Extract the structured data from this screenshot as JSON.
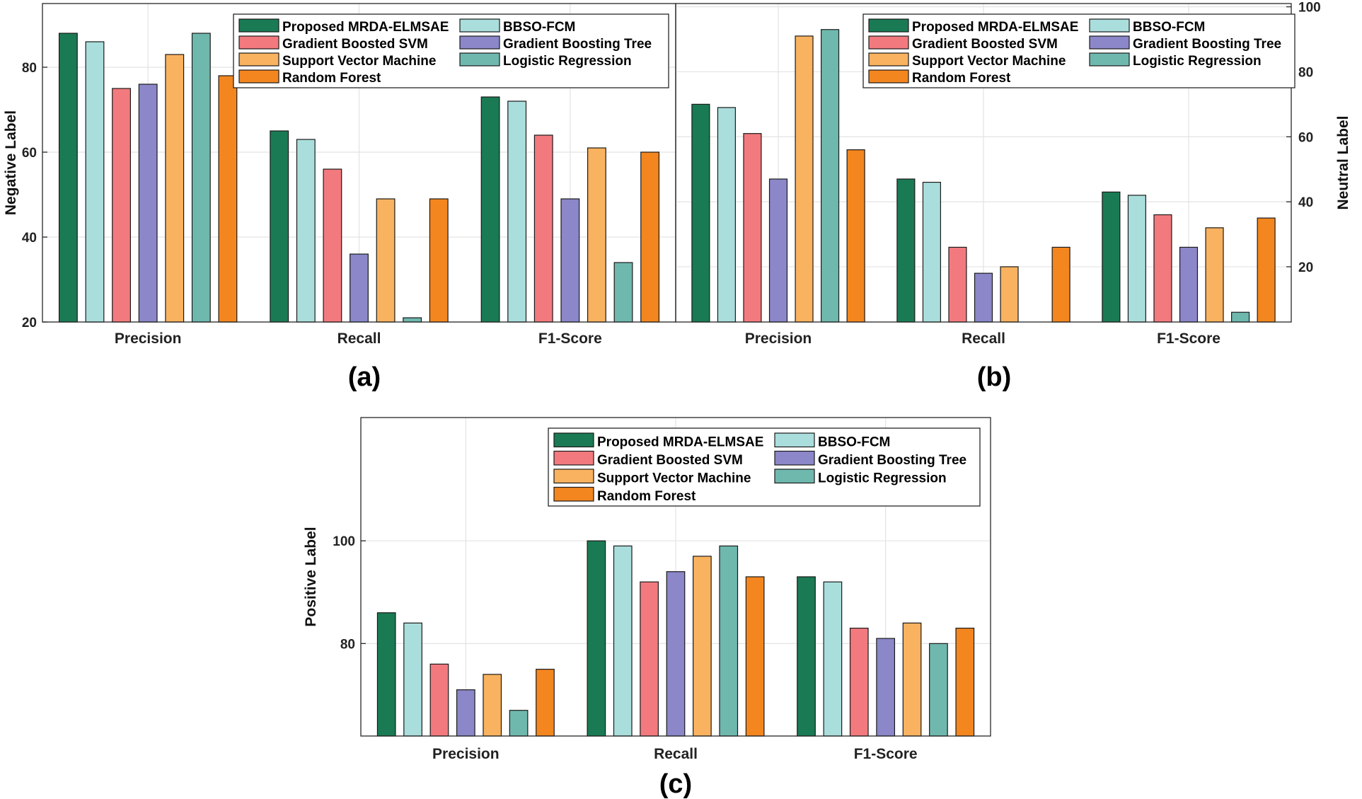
{
  "colors": {
    "Proposed MRDA-ELMSAE": "#1a7a54",
    "BBSO-FCM": "#aadedc",
    "Gradient Boosted SVM": "#f27a7e",
    "Gradient Boosting Tree": "#8b87c9",
    "Support Vector Machine": "#f9b25f",
    "Logistic Regression": "#6fb8ae",
    "Random Forest": "#f3861f"
  },
  "chart_data": [
    {
      "type": "bar",
      "panel_label": "(a)",
      "ylabel": "Negative Label",
      "y_axis_side": "left",
      "ylim": [
        20,
        95
      ],
      "yticks": [
        20,
        40,
        60,
        80
      ],
      "categories": [
        "Precision",
        "Recall",
        "F1-Score"
      ],
      "legend_position": "top-right",
      "series": [
        {
          "name": "Proposed MRDA-ELMSAE",
          "values": [
            88,
            65,
            73
          ]
        },
        {
          "name": "BBSO-FCM",
          "values": [
            86,
            63,
            72
          ]
        },
        {
          "name": "Gradient Boosted SVM",
          "values": [
            75,
            56,
            64
          ]
        },
        {
          "name": "Gradient Boosting Tree",
          "values": [
            76,
            36,
            49
          ]
        },
        {
          "name": "Support Vector Machine",
          "values": [
            83,
            49,
            61
          ]
        },
        {
          "name": "Logistic Regression",
          "values": [
            88,
            21,
            34
          ]
        },
        {
          "name": "Random Forest",
          "values": [
            78,
            49,
            60
          ]
        }
      ]
    },
    {
      "type": "bar",
      "panel_label": "(b)",
      "ylabel": "Neutral Label",
      "y_axis_side": "right",
      "ylim": [
        3,
        101
      ],
      "yticks": [
        20,
        40,
        60,
        80,
        100
      ],
      "categories": [
        "Precision",
        "Recall",
        "F1-Score"
      ],
      "legend_position": "top-right",
      "series": [
        {
          "name": "Proposed MRDA-ELMSAE",
          "values": [
            70,
            47,
            43
          ]
        },
        {
          "name": "BBSO-FCM",
          "values": [
            69,
            46,
            42
          ]
        },
        {
          "name": "Gradient Boosted SVM",
          "values": [
            61,
            26,
            36
          ]
        },
        {
          "name": "Gradient Boosting Tree",
          "values": [
            47,
            18,
            26
          ]
        },
        {
          "name": "Support Vector Machine",
          "values": [
            91,
            20,
            32
          ]
        },
        {
          "name": "Logistic Regression",
          "values": [
            93,
            null,
            6
          ]
        },
        {
          "name": "Random Forest",
          "values": [
            56,
            26,
            35
          ]
        }
      ]
    },
    {
      "type": "bar",
      "panel_label": "(c)",
      "ylabel": "Positive Label",
      "y_axis_side": "left",
      "ylim": [
        62,
        124
      ],
      "yticks": [
        80,
        100
      ],
      "categories": [
        "Precision",
        "Recall",
        "F1-Score"
      ],
      "legend_position": "top-right",
      "series": [
        {
          "name": "Proposed MRDA-ELMSAE",
          "values": [
            86,
            100,
            93
          ]
        },
        {
          "name": "BBSO-FCM",
          "values": [
            84,
            99,
            92
          ]
        },
        {
          "name": "Gradient Boosted SVM",
          "values": [
            76,
            92,
            83
          ]
        },
        {
          "name": "Gradient Boosting Tree",
          "values": [
            71,
            94,
            81
          ]
        },
        {
          "name": "Support Vector Machine",
          "values": [
            74,
            97,
            84
          ]
        },
        {
          "name": "Logistic Regression",
          "values": [
            67,
            99,
            80
          ]
        },
        {
          "name": "Random Forest",
          "values": [
            75,
            93,
            83
          ]
        }
      ]
    }
  ]
}
